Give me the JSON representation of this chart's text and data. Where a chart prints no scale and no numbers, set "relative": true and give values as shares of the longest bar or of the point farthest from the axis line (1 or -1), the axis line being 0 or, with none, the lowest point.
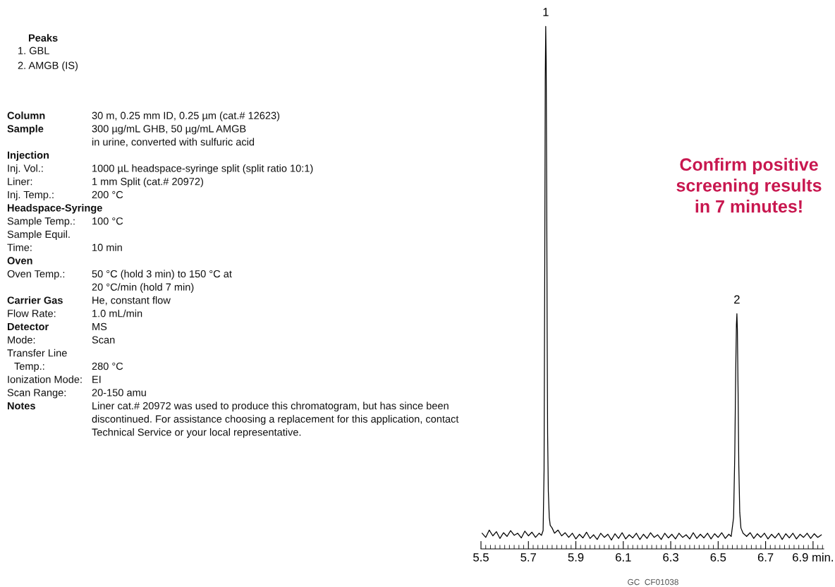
{
  "chart_data": {
    "type": "line",
    "relative": true,
    "x": [
      5.505,
      5.52,
      5.535,
      5.55,
      5.565,
      5.58,
      5.595,
      5.61,
      5.625,
      5.64,
      5.655,
      5.67,
      5.685,
      5.7,
      5.715,
      5.73,
      5.745,
      5.755,
      5.762,
      5.766,
      5.769,
      5.771,
      5.773,
      5.775,
      5.777,
      5.779,
      5.781,
      5.784,
      5.788,
      5.792,
      5.8,
      5.81,
      5.825,
      5.84,
      5.855,
      5.87,
      5.885,
      5.9,
      5.915,
      5.93,
      5.945,
      5.96,
      5.975,
      5.99,
      6.005,
      6.02,
      6.035,
      6.05,
      6.065,
      6.08,
      6.095,
      6.11,
      6.125,
      6.14,
      6.155,
      6.17,
      6.185,
      6.2,
      6.215,
      6.23,
      6.245,
      6.26,
      6.275,
      6.29,
      6.305,
      6.32,
      6.335,
      6.35,
      6.365,
      6.38,
      6.395,
      6.41,
      6.425,
      6.44,
      6.455,
      6.47,
      6.485,
      6.5,
      6.515,
      6.53,
      6.545,
      6.555,
      6.565,
      6.57,
      6.574,
      6.577,
      6.579,
      6.581,
      6.584,
      6.587,
      6.591,
      6.596,
      6.605,
      6.62,
      6.635,
      6.65,
      6.665,
      6.68,
      6.695,
      6.71,
      6.725,
      6.74,
      6.755,
      6.77,
      6.785,
      6.8,
      6.815,
      6.83,
      6.845,
      6.86,
      6.875,
      6.89,
      6.905,
      6.92,
      6.935
    ],
    "series": [
      {
        "color": "#000000",
        "values": [
          0.03,
          0.022,
          0.036,
          0.025,
          0.033,
          0.02,
          0.031,
          0.024,
          0.035,
          0.026,
          0.03,
          0.021,
          0.034,
          0.025,
          0.032,
          0.022,
          0.03,
          0.026,
          0.035,
          0.15,
          0.55,
          0.9,
          1.0,
          0.93,
          0.7,
          0.42,
          0.22,
          0.11,
          0.06,
          0.045,
          0.04,
          0.03,
          0.036,
          0.025,
          0.031,
          0.022,
          0.03,
          0.019,
          0.028,
          0.021,
          0.032,
          0.02,
          0.027,
          0.018,
          0.03,
          0.022,
          0.028,
          0.017,
          0.029,
          0.02,
          0.031,
          0.019,
          0.027,
          0.021,
          0.03,
          0.018,
          0.028,
          0.02,
          0.031,
          0.022,
          0.027,
          0.018,
          0.03,
          0.021,
          0.028,
          0.019,
          0.03,
          0.022,
          0.027,
          0.019,
          0.031,
          0.02,
          0.028,
          0.021,
          0.03,
          0.019,
          0.029,
          0.022,
          0.031,
          0.02,
          0.028,
          0.024,
          0.06,
          0.18,
          0.34,
          0.43,
          0.45,
          0.42,
          0.3,
          0.16,
          0.07,
          0.04,
          0.03,
          0.024,
          0.031,
          0.02,
          0.029,
          0.022,
          0.03,
          0.019,
          0.028,
          0.021,
          0.03,
          0.018,
          0.029,
          0.021,
          0.03,
          0.019,
          0.028,
          0.022,
          0.03,
          0.02,
          0.029,
          0.022,
          0.027
        ]
      }
    ],
    "xlim": [
      5.5,
      6.945
    ],
    "xticks": [
      5.5,
      5.7,
      5.9,
      6.1,
      6.3,
      6.5,
      6.7,
      {
        "value": 6.9,
        "label": "6.9 min."
      }
    ],
    "tick_labels": "x",
    "grid": false,
    "marker": "none",
    "line_style": "solid",
    "annotations": [
      "Peaks",
      "1. GBL",
      "2. AMGB (IS)",
      "Column",
      "30 m, 0.25 mm ID, 0.25 µm (cat.# 12623)",
      "Sample",
      "300 µg/mL GHB, 50 µg/mL AMGB",
      "in urine, converted with sulfuric acid",
      "Injection",
      "Inj. Vol.:",
      "1000 µL headspace-syringe split (split ratio 10:1)",
      "Liner:",
      "1 mm Split (cat.# 20972)",
      "Inj. Temp.:",
      "200 °C",
      "Headspace-Syringe",
      "Sample Temp.:",
      "100 °C",
      "Sample Equil.",
      "Time:",
      "10 min",
      "Oven",
      "Oven Temp.:",
      "50 °C (hold 3 min) to 150 °C at",
      "20 °C/min (hold 7 min)",
      "Carrier Gas",
      "He, constant flow",
      "Flow Rate:",
      "1.0 mL/min",
      "Detector",
      "MS",
      "Mode:",
      "Scan",
      "Transfer Line",
      "Temp.:",
      "280 °C",
      "Ionization Mode:",
      "EI",
      "Scan Range:",
      "20-150 amu",
      "Notes",
      "Liner cat.# 20972 was used to produce this chromatogram, but has since been",
      "discontinued. For assistance choosing a replacement for this application, contact",
      "Technical Service or your local representative.",
      "Confirm positive\nscreening results\nin 7 minutes!",
      "GC  CF01038",
      {
        "text": "1",
        "x": 5.773,
        "y": 1.0
      },
      {
        "text": "2",
        "x": 6.579,
        "y": 0.45
      }
    ]
  }
}
